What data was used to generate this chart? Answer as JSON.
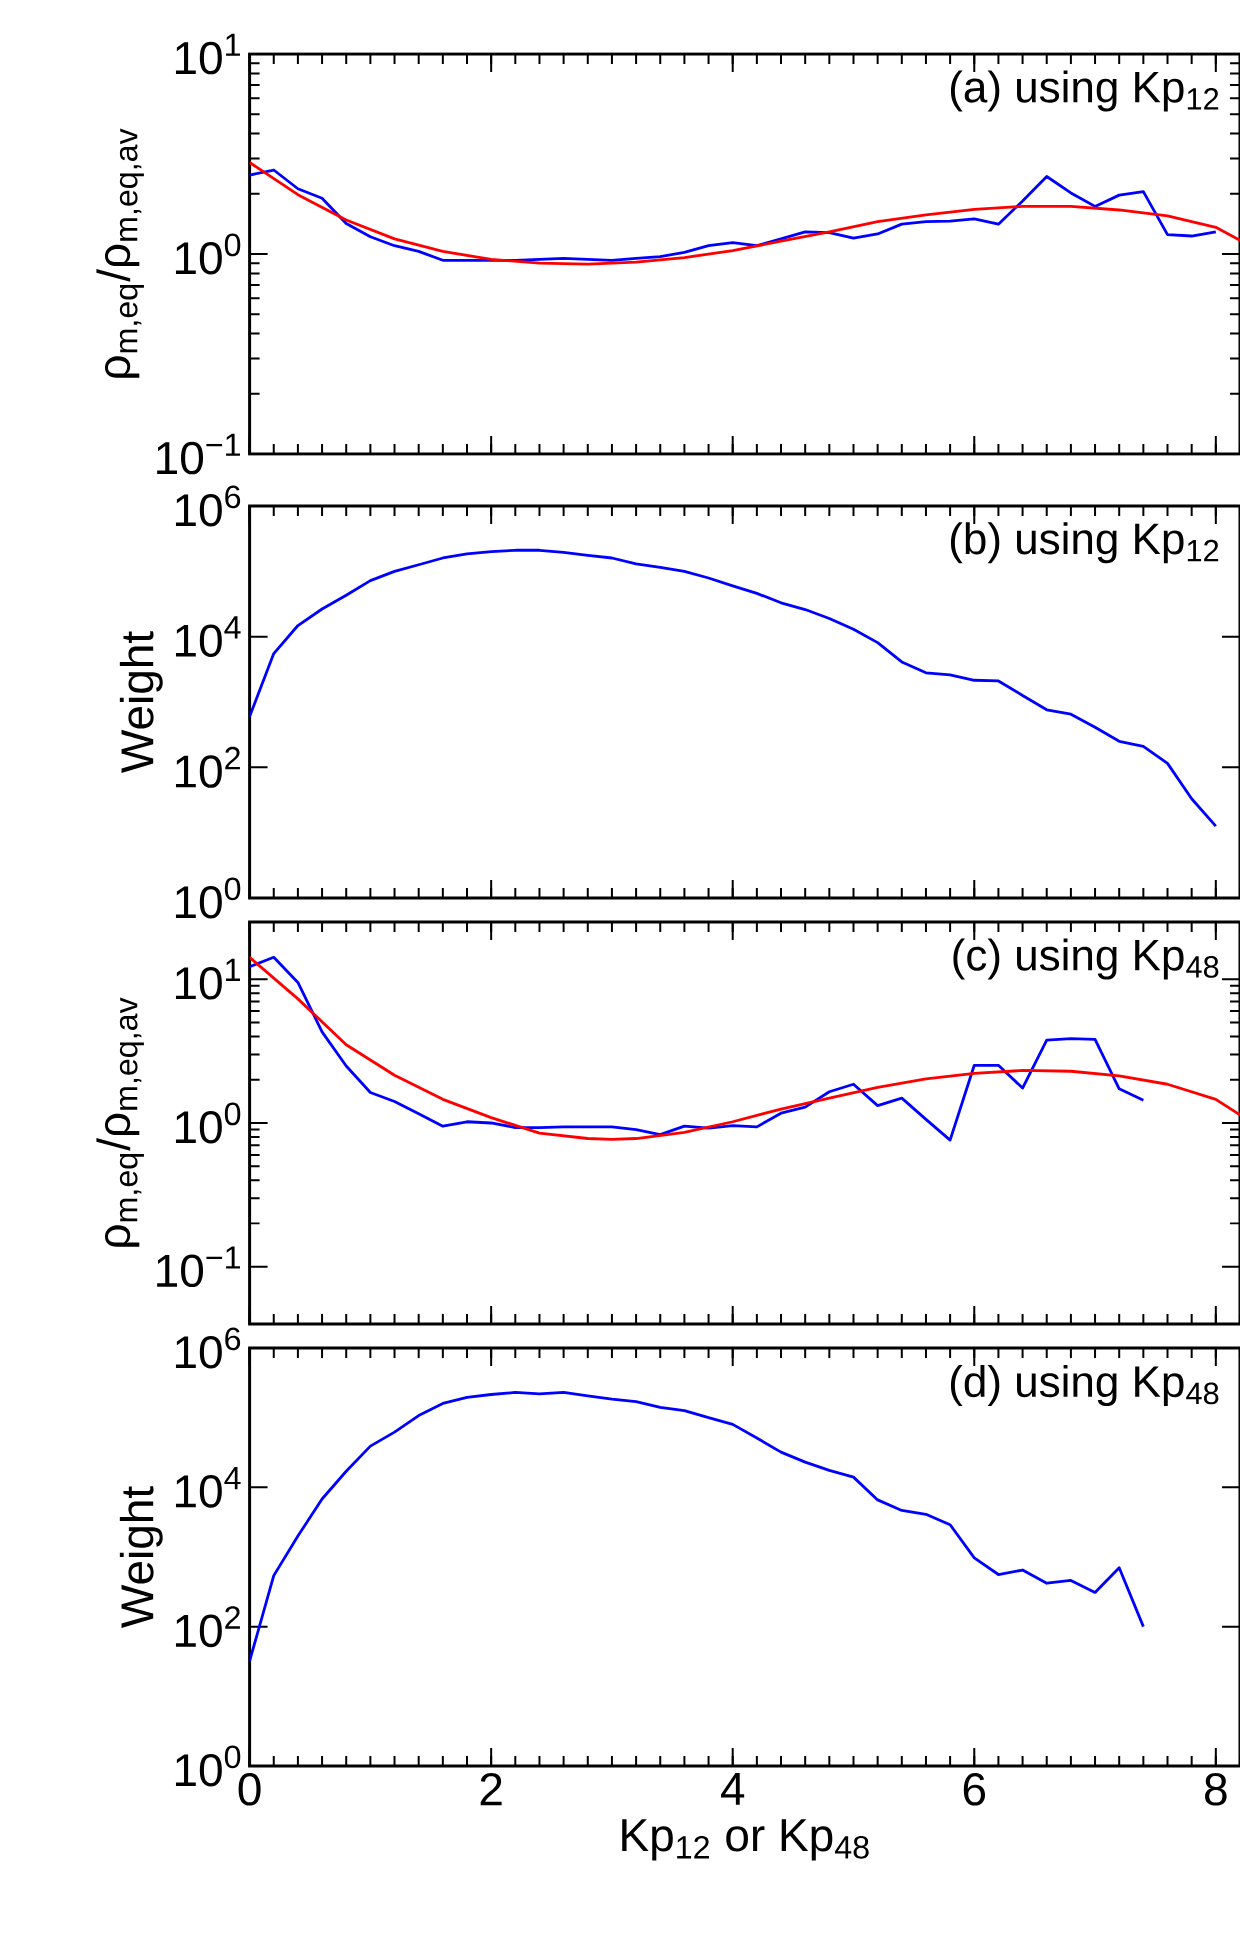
{
  "chart_data": [
    {
      "type": "line",
      "ylabel": "ρ$_{m,eq}$/ρ$_{m,eq,av}$",
      "annotations": [
        "(a) using Kp$_{12}$"
      ],
      "log": "y",
      "tick_labels": "y",
      "xlim": [
        0,
        8.2
      ],
      "xticks": [
        0,
        2,
        4,
        6,
        8
      ],
      "ylim": [
        0.1,
        10
      ],
      "yticks": [
        {
          "value": 0.1,
          "label": "10$^{−1}$"
        },
        {
          "value": 1,
          "label": "10$^{0}$"
        },
        {
          "value": 10,
          "label": "10$^{1}$"
        }
      ],
      "series": [
        {
          "color": "#0000ff",
          "x": [
            0,
            0.2,
            0.4,
            0.6,
            0.8,
            1,
            1.2,
            1.4,
            1.6,
            1.8,
            2,
            2.2,
            2.4,
            2.6,
            2.8,
            3,
            3.2,
            3.4,
            3.6,
            3.8,
            4,
            4.2,
            4.4,
            4.6,
            4.8,
            5,
            5.2,
            5.4,
            5.6,
            5.8,
            6,
            6.2,
            6.4,
            6.6,
            6.8,
            7,
            7.2,
            7.4,
            7.6,
            7.8,
            8
          ],
          "values": [
            2.48,
            2.63,
            2.12,
            1.9,
            1.42,
            1.22,
            1.1,
            1.03,
            0.93,
            0.93,
            0.93,
            0.93,
            0.94,
            0.95,
            0.94,
            0.93,
            0.95,
            0.97,
            1.02,
            1.1,
            1.14,
            1.1,
            1.19,
            1.29,
            1.28,
            1.2,
            1.26,
            1.41,
            1.45,
            1.46,
            1.5,
            1.41,
            1.84,
            2.44,
            2.02,
            1.73,
            1.97,
            2.05,
            1.25,
            1.23,
            1.29
          ]
        },
        {
          "color": "#ff0000",
          "x": [
            0,
            0.4,
            0.8,
            1.2,
            1.6,
            2,
            2.4,
            2.8,
            3.2,
            3.6,
            4,
            4.4,
            4.8,
            5.2,
            5.6,
            6,
            6.4,
            6.8,
            7.2,
            7.6,
            8,
            8.2
          ],
          "values": [
            2.87,
            1.98,
            1.48,
            1.19,
            1.03,
            0.94,
            0.9,
            0.89,
            0.91,
            0.96,
            1.04,
            1.16,
            1.29,
            1.45,
            1.57,
            1.67,
            1.73,
            1.73,
            1.66,
            1.55,
            1.36,
            1.17
          ]
        }
      ]
    },
    {
      "type": "line",
      "ylabel": "Weight",
      "annotations": [
        "(b) using Kp$_{12}$"
      ],
      "log": "y",
      "tick_labels": "y",
      "xlim": [
        0,
        8.2
      ],
      "xticks": [
        0,
        2,
        4,
        6,
        8
      ],
      "ylim": [
        1,
        1000000
      ],
      "yticks": [
        {
          "value": 1,
          "label": "10$^{0}$"
        },
        {
          "value": 100,
          "label": "10$^{2}$"
        },
        {
          "value": 10000,
          "label": "10$^{4}$"
        },
        {
          "value": 1000000,
          "label": "10$^{6}$"
        }
      ],
      "series": [
        {
          "color": "#0000ff",
          "x": [
            0,
            0.2,
            0.4,
            0.6,
            0.8,
            1,
            1.2,
            1.4,
            1.6,
            1.8,
            2,
            2.2,
            2.4,
            2.6,
            2.8,
            3,
            3.2,
            3.4,
            3.6,
            3.8,
            4,
            4.2,
            4.4,
            4.6,
            4.8,
            5,
            5.2,
            5.4,
            5.6,
            5.8,
            6,
            6.2,
            6.4,
            6.6,
            6.8,
            7,
            7.2,
            7.4,
            7.6,
            7.8,
            8
          ],
          "values": [
            600,
            5500,
            14800,
            26500,
            43000,
            72000,
            100000,
            126000,
            160000,
            185000,
            200000,
            210000,
            210000,
            195000,
            175000,
            160000,
            130000,
            115000,
            100000,
            79000,
            60000,
            46000,
            33000,
            26000,
            19000,
            13000,
            8100,
            4100,
            2800,
            2600,
            2150,
            2100,
            1260,
            760,
            650,
            410,
            250,
            210,
            115,
            33,
            12.6
          ]
        }
      ]
    },
    {
      "type": "line",
      "ylabel": "ρ$_{m,eq}$/ρ$_{m,eq,av}$",
      "annotations": [
        "(c) using Kp$_{48}$"
      ],
      "log": "y",
      "tick_labels": "y",
      "xlim": [
        0,
        8.2
      ],
      "xticks": [
        0,
        2,
        4,
        6,
        8
      ],
      "ylim": [
        0.04,
        25
      ],
      "yticks": [
        {
          "value": 0.1,
          "label": "10$^{−1}$"
        },
        {
          "value": 1,
          "label": "10$^{0}$"
        },
        {
          "value": 10,
          "label": "10$^{1}$"
        }
      ],
      "series": [
        {
          "color": "#0000ff",
          "x": [
            0,
            0.2,
            0.4,
            0.6,
            0.8,
            1,
            1.2,
            1.4,
            1.6,
            1.8,
            2,
            2.2,
            2.4,
            2.6,
            2.8,
            3,
            3.2,
            3.4,
            3.6,
            3.8,
            4,
            4.2,
            4.4,
            4.6,
            4.8,
            5,
            5.2,
            5.4,
            5.6,
            5.8,
            6,
            6.2,
            6.4,
            6.6,
            6.8,
            7,
            7.2,
            7.4
          ],
          "values": [
            12.2,
            14.2,
            9.5,
            4.3,
            2.49,
            1.63,
            1.41,
            1.16,
            0.95,
            1.02,
            1.0,
            0.93,
            0.93,
            0.94,
            0.94,
            0.94,
            0.9,
            0.83,
            0.95,
            0.92,
            0.96,
            0.94,
            1.17,
            1.29,
            1.65,
            1.86,
            1.32,
            1.49,
            1.06,
            0.76,
            2.52,
            2.52,
            1.75,
            3.77,
            3.86,
            3.82,
            1.73,
            1.44
          ]
        },
        {
          "color": "#ff0000",
          "x": [
            0,
            0.4,
            0.8,
            1.2,
            1.6,
            2,
            2.4,
            2.8,
            3,
            3.2,
            3.6,
            4,
            4.4,
            4.8,
            5.2,
            5.6,
            6,
            6.4,
            6.8,
            7.2,
            7.6,
            8,
            8.2
          ],
          "values": [
            14.2,
            7.3,
            3.5,
            2.15,
            1.46,
            1.09,
            0.85,
            0.78,
            0.77,
            0.78,
            0.86,
            1.02,
            1.25,
            1.49,
            1.77,
            2.03,
            2.21,
            2.32,
            2.29,
            2.13,
            1.86,
            1.46,
            1.14
          ]
        }
      ]
    },
    {
      "type": "line",
      "ylabel": "Weight",
      "xlabel": "Kp$_{12}$ or Kp$_{48}$",
      "annotations": [
        "(d) using Kp$_{48}$"
      ],
      "log": "y",
      "xlim": [
        0,
        8.2
      ],
      "xticks": [
        0,
        2,
        4,
        6,
        8
      ],
      "ylim": [
        1,
        1000000
      ],
      "yticks": [
        {
          "value": 1,
          "label": "10$^{0}$"
        },
        {
          "value": 100,
          "label": "10$^{2}$"
        },
        {
          "value": 10000,
          "label": "10$^{4}$"
        },
        {
          "value": 1000000,
          "label": "10$^{6}$"
        }
      ],
      "series": [
        {
          "color": "#0000ff",
          "x": [
            0,
            0.2,
            0.4,
            0.6,
            0.8,
            1,
            1.2,
            1.4,
            1.6,
            1.8,
            2,
            2.2,
            2.4,
            2.6,
            2.8,
            3,
            3.2,
            3.4,
            3.6,
            3.8,
            4,
            4.2,
            4.4,
            4.6,
            4.8,
            5,
            5.2,
            5.4,
            5.6,
            5.8,
            6,
            6.2,
            6.4,
            6.6,
            6.8,
            7,
            7.2,
            7.4
          ],
          "values": [
            32,
            540,
            2000,
            6800,
            17000,
            39000,
            62000,
            107000,
            160000,
            195000,
            215000,
            230000,
            220000,
            230000,
            205000,
            185000,
            170000,
            140000,
            126000,
            100000,
            80000,
            51000,
            32000,
            23000,
            17500,
            14000,
            6600,
            4650,
            4100,
            2900,
            970,
            560,
            650,
            420,
            460,
            310,
            700,
            100
          ]
        }
      ]
    }
  ]
}
